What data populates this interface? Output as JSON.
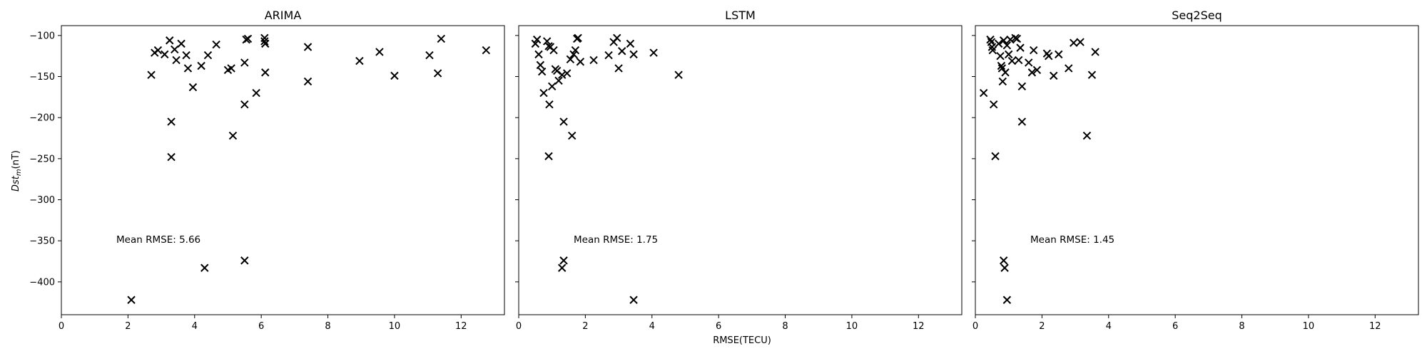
{
  "chart_data": {
    "type": "scatter",
    "xlabel": "RMSE(TECU)",
    "ylabel": "Dst_m(nT)",
    "ylabel_main": "Dst",
    "ylabel_sub": "m",
    "ylabel_unit": "(nT)",
    "xlim": [
      0,
      13.3
    ],
    "ylim": [
      -440,
      -88
    ],
    "xticks": [
      0,
      2,
      4,
      6,
      8,
      10,
      12
    ],
    "yticks": [
      -100,
      -150,
      -200,
      -250,
      -300,
      -350,
      -400
    ],
    "marker": "x",
    "color": "#000000",
    "panels": [
      {
        "title": "ARIMA",
        "annotation": "Mean RMSE: 5.66",
        "points": [
          [
            2.7,
            -148
          ],
          [
            2.8,
            -121
          ],
          [
            2.9,
            -118
          ],
          [
            3.1,
            -123
          ],
          [
            3.25,
            -106
          ],
          [
            3.4,
            -117
          ],
          [
            3.45,
            -130
          ],
          [
            3.6,
            -110
          ],
          [
            3.75,
            -124
          ],
          [
            3.8,
            -140
          ],
          [
            3.95,
            -163
          ],
          [
            4.2,
            -137
          ],
          [
            4.4,
            -124
          ],
          [
            4.65,
            -111
          ],
          [
            5.0,
            -142
          ],
          [
            5.1,
            -140
          ],
          [
            5.5,
            -133
          ],
          [
            5.55,
            -105
          ],
          [
            5.6,
            -104
          ],
          [
            5.85,
            -170
          ],
          [
            6.1,
            -103
          ],
          [
            6.1,
            -107
          ],
          [
            6.12,
            -110
          ],
          [
            6.12,
            -145
          ],
          [
            7.4,
            -114
          ],
          [
            7.4,
            -156
          ],
          [
            8.95,
            -131
          ],
          [
            9.55,
            -120
          ],
          [
            10.0,
            -149
          ],
          [
            11.05,
            -124
          ],
          [
            11.3,
            -146
          ],
          [
            11.4,
            -104
          ],
          [
            12.75,
            -118
          ],
          [
            3.3,
            -205
          ],
          [
            3.3,
            -248
          ],
          [
            5.15,
            -222
          ],
          [
            5.5,
            -184
          ],
          [
            4.3,
            -383
          ],
          [
            5.5,
            -374
          ],
          [
            2.1,
            -422
          ]
        ]
      },
      {
        "title": "LSTM",
        "annotation": "Mean RMSE: 1.75",
        "points": [
          [
            0.5,
            -110
          ],
          [
            0.55,
            -105
          ],
          [
            0.6,
            -123
          ],
          [
            0.65,
            -136
          ],
          [
            0.7,
            -144
          ],
          [
            0.75,
            -170
          ],
          [
            0.85,
            -107
          ],
          [
            0.9,
            -113
          ],
          [
            0.95,
            -114
          ],
          [
            1.0,
            -162
          ],
          [
            1.05,
            -118
          ],
          [
            1.1,
            -141
          ],
          [
            1.15,
            -143
          ],
          [
            1.2,
            -155
          ],
          [
            1.3,
            -148
          ],
          [
            1.45,
            -146
          ],
          [
            1.55,
            -129
          ],
          [
            1.65,
            -123
          ],
          [
            1.7,
            -118
          ],
          [
            1.75,
            -104
          ],
          [
            1.78,
            -103
          ],
          [
            1.85,
            -132
          ],
          [
            2.25,
            -130
          ],
          [
            2.7,
            -124
          ],
          [
            2.85,
            -108
          ],
          [
            2.95,
            -103
          ],
          [
            3.0,
            -140
          ],
          [
            3.1,
            -119
          ],
          [
            3.35,
            -110
          ],
          [
            3.45,
            -123
          ],
          [
            4.05,
            -121
          ],
          [
            4.8,
            -148
          ],
          [
            1.35,
            -205
          ],
          [
            1.6,
            -222
          ],
          [
            0.92,
            -184
          ],
          [
            0.9,
            -247
          ],
          [
            1.3,
            -383
          ],
          [
            1.35,
            -374
          ],
          [
            3.45,
            -422
          ]
        ]
      },
      {
        "title": "Seq2Seq",
        "annotation": "Mean RMSE: 1.45",
        "points": [
          [
            0.25,
            -170
          ],
          [
            0.45,
            -105
          ],
          [
            0.48,
            -108
          ],
          [
            0.5,
            -114
          ],
          [
            0.52,
            -118
          ],
          [
            0.7,
            -110
          ],
          [
            0.75,
            -125
          ],
          [
            0.78,
            -137
          ],
          [
            0.8,
            -140
          ],
          [
            0.82,
            -156
          ],
          [
            0.85,
            -106
          ],
          [
            0.9,
            -145
          ],
          [
            0.95,
            -112
          ],
          [
            1.0,
            -123
          ],
          [
            1.05,
            -105
          ],
          [
            1.1,
            -131
          ],
          [
            1.2,
            -103
          ],
          [
            1.25,
            -104
          ],
          [
            1.3,
            -130
          ],
          [
            1.35,
            -115
          ],
          [
            1.4,
            -162
          ],
          [
            1.6,
            -133
          ],
          [
            1.7,
            -145
          ],
          [
            1.75,
            -118
          ],
          [
            1.85,
            -142
          ],
          [
            2.15,
            -122
          ],
          [
            2.2,
            -125
          ],
          [
            2.35,
            -149
          ],
          [
            2.5,
            -123
          ],
          [
            2.8,
            -140
          ],
          [
            2.95,
            -109
          ],
          [
            3.15,
            -108
          ],
          [
            3.5,
            -148
          ],
          [
            3.6,
            -120
          ],
          [
            1.4,
            -205
          ],
          [
            3.35,
            -222
          ],
          [
            0.55,
            -184
          ],
          [
            0.6,
            -247
          ],
          [
            0.85,
            -374
          ],
          [
            0.88,
            -383
          ],
          [
            0.95,
            -422
          ]
        ]
      }
    ]
  }
}
